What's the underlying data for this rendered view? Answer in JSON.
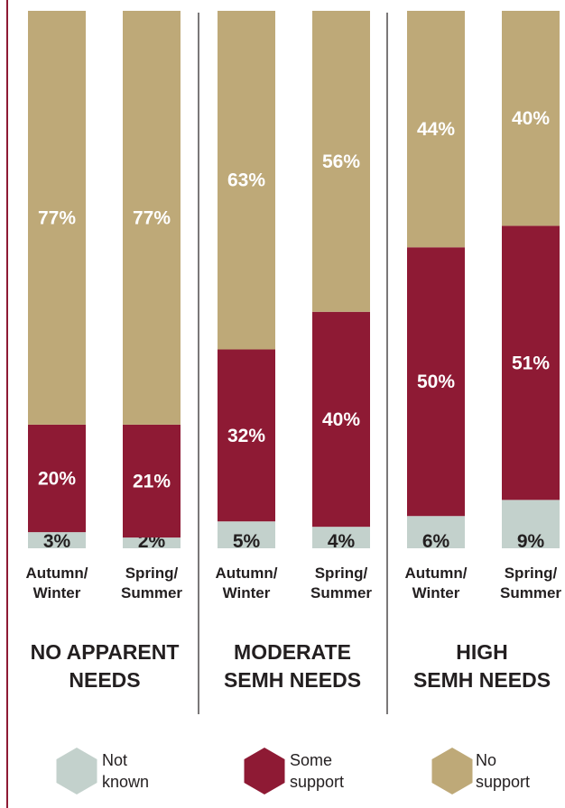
{
  "chart_data": {
    "type": "bar",
    "stacked": true,
    "percent": true,
    "groups": [
      {
        "label_lines": [
          "NO APPARENT",
          "NEEDS"
        ],
        "bars": [
          {
            "label_lines": [
              "Autumn/",
              "Winter"
            ],
            "values": {
              "not_known": 3,
              "some_support": 20,
              "no_support": 77
            }
          },
          {
            "label_lines": [
              "Spring/",
              "Summer"
            ],
            "values": {
              "not_known": 2,
              "some_support": 21,
              "no_support": 77
            }
          }
        ]
      },
      {
        "label_lines": [
          "MODERATE",
          "SEMH NEEDS"
        ],
        "bars": [
          {
            "label_lines": [
              "Autumn/",
              "Winter"
            ],
            "values": {
              "not_known": 5,
              "some_support": 32,
              "no_support": 63
            }
          },
          {
            "label_lines": [
              "Spring/",
              "Summer"
            ],
            "values": {
              "not_known": 4,
              "some_support": 40,
              "no_support": 56
            }
          }
        ]
      },
      {
        "label_lines": [
          "HIGH",
          "SEMH NEEDS"
        ],
        "bars": [
          {
            "label_lines": [
              "Autumn/",
              "Winter"
            ],
            "values": {
              "not_known": 6,
              "some_support": 50,
              "no_support": 44
            }
          },
          {
            "label_lines": [
              "Spring/",
              "Summer"
            ],
            "values": {
              "not_known": 9,
              "some_support": 51,
              "no_support": 40
            }
          }
        ]
      }
    ],
    "series": [
      {
        "key": "not_known",
        "label_lines": [
          "Not",
          "known"
        ],
        "color": "#c3d1cc",
        "text_color": "#231f20"
      },
      {
        "key": "some_support",
        "label_lines": [
          "Some",
          "support"
        ],
        "color": "#8e1a34",
        "text_color": "#ffffff"
      },
      {
        "key": "no_support",
        "label_lines": [
          "No",
          "support"
        ],
        "color": "#bea978",
        "text_color": "#ffffff"
      }
    ],
    "value_suffix": "%",
    "legend_position": "bottom",
    "colors": {
      "frame_line": "#8e1a34",
      "divider": "#231f20",
      "text": "#231f20"
    }
  }
}
